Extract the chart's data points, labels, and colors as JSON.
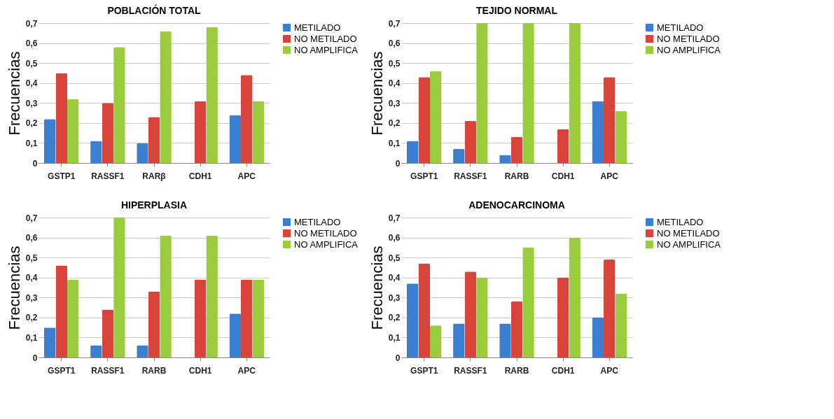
{
  "chart_data": [
    {
      "type": "bar",
      "title": "POBLACIÓN TOTAL",
      "ylabel": "Frecuencias",
      "categories": [
        "GSTP1",
        "RASSF1",
        "RARβ",
        "CDH1",
        "APC"
      ],
      "series": [
        {
          "name": "METILADO",
          "color": "#3b7fd1",
          "values": [
            0.22,
            0.11,
            0.1,
            0,
            0.24
          ]
        },
        {
          "name": "NO METILADO",
          "color": "#d9443a",
          "values": [
            0.45,
            0.3,
            0.23,
            0.31,
            0.44
          ]
        },
        {
          "name": "NO AMPLIFICA",
          "color": "#9bcb3e",
          "values": [
            0.32,
            0.58,
            0.66,
            0.68,
            0.31
          ]
        }
      ],
      "ylim": [
        0,
        0.7
      ],
      "yticks": [
        {
          "value": 0,
          "label": "0"
        },
        {
          "value": 0.1,
          "label": "0,1"
        },
        {
          "value": 0.2,
          "label": "0,2"
        },
        {
          "value": 0.3,
          "label": "0,3"
        },
        {
          "value": 0.4,
          "label": "0,4"
        },
        {
          "value": 0.5,
          "label": "0,5"
        },
        {
          "value": 0.6,
          "label": "0,6"
        },
        {
          "value": 0.7,
          "label": "0,7"
        }
      ],
      "grid": "y",
      "legend": "right"
    },
    {
      "type": "bar",
      "title": "TEJIDO NORMAL",
      "ylabel": "Frecuencias",
      "categories": [
        "GSPT1",
        "RASSF1",
        "RARB",
        "CDH1",
        "APC"
      ],
      "series": [
        {
          "name": "METILADO",
          "color": "#3b7fd1",
          "values": [
            0.11,
            0.07,
            0.04,
            0,
            0.31
          ]
        },
        {
          "name": "NO METILADO",
          "color": "#d9443a",
          "values": [
            0.43,
            0.21,
            0.13,
            0.17,
            0.43
          ]
        },
        {
          "name": "NO AMPLIFICA",
          "color": "#9bcb3e",
          "values": [
            0.46,
            0.7,
            0.7,
            0.7,
            0.26
          ]
        }
      ],
      "ylim": [
        0,
        0.7
      ],
      "yticks": [
        {
          "value": 0,
          "label": "0"
        },
        {
          "value": 0.1,
          "label": "0,1"
        },
        {
          "value": 0.2,
          "label": "0,2"
        },
        {
          "value": 0.3,
          "label": "0,3"
        },
        {
          "value": 0.4,
          "label": "0,4"
        },
        {
          "value": 0.5,
          "label": "0,5"
        },
        {
          "value": 0.6,
          "label": "0,6"
        },
        {
          "value": 0.7,
          "label": "0,7"
        }
      ],
      "grid": "y",
      "legend": "right"
    },
    {
      "type": "bar",
      "title": "HIPERPLASIA",
      "ylabel": "Frecuencias",
      "categories": [
        "GSPT1",
        "RASSF1",
        "RARB",
        "CDH1",
        "APC"
      ],
      "series": [
        {
          "name": "METILADO",
          "color": "#3b7fd1",
          "values": [
            0.15,
            0.06,
            0.06,
            0,
            0.22
          ]
        },
        {
          "name": "NO METILADO",
          "color": "#d9443a",
          "values": [
            0.46,
            0.24,
            0.33,
            0.39,
            0.39
          ]
        },
        {
          "name": "NO AMPLIFICA",
          "color": "#9bcb3e",
          "values": [
            0.39,
            0.7,
            0.61,
            0.61,
            0.39
          ]
        }
      ],
      "ylim": [
        0,
        0.7
      ],
      "yticks": [
        {
          "value": 0,
          "label": "0"
        },
        {
          "value": 0.1,
          "label": "0,1"
        },
        {
          "value": 0.2,
          "label": "0,2"
        },
        {
          "value": 0.3,
          "label": "0,3"
        },
        {
          "value": 0.4,
          "label": "0,4"
        },
        {
          "value": 0.5,
          "label": "0,5"
        },
        {
          "value": 0.6,
          "label": "0,6"
        },
        {
          "value": 0.7,
          "label": "0,7"
        }
      ],
      "grid": "y",
      "legend": "right"
    },
    {
      "type": "bar",
      "title": "ADENOCARCINOMA",
      "ylabel": "Frecuencias",
      "categories": [
        "GSPT1",
        "RASSF1",
        "RARB",
        "CDH1",
        "APC"
      ],
      "series": [
        {
          "name": "METILADO",
          "color": "#3b7fd1",
          "values": [
            0.37,
            0.17,
            0.17,
            0,
            0.2
          ]
        },
        {
          "name": "NO METILADO",
          "color": "#d9443a",
          "values": [
            0.47,
            0.43,
            0.28,
            0.4,
            0.49
          ]
        },
        {
          "name": "NO AMPLIFICA",
          "color": "#9bcb3e",
          "values": [
            0.16,
            0.4,
            0.55,
            0.6,
            0.32
          ]
        }
      ],
      "ylim": [
        0,
        0.7
      ],
      "yticks": [
        {
          "value": 0,
          "label": "0"
        },
        {
          "value": 0.1,
          "label": "0,1"
        },
        {
          "value": 0.2,
          "label": "0,2"
        },
        {
          "value": 0.3,
          "label": "0,3"
        },
        {
          "value": 0.4,
          "label": "0,4"
        },
        {
          "value": 0.5,
          "label": "0,5"
        },
        {
          "value": 0.6,
          "label": "0,6"
        },
        {
          "value": 0.7,
          "label": "0,7"
        }
      ],
      "grid": "y",
      "legend": "right"
    }
  ]
}
